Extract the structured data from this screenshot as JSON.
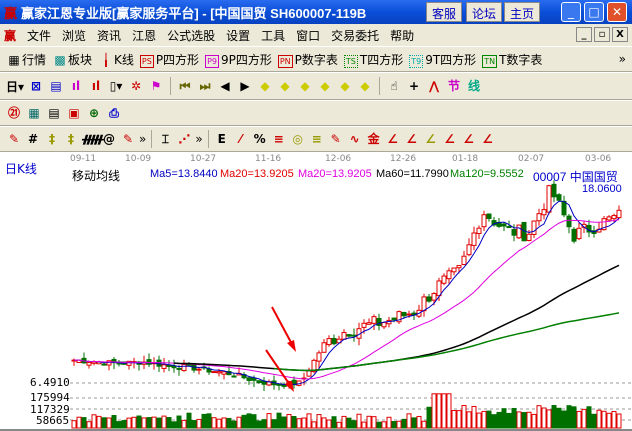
{
  "window": {
    "title": "赢家江恩专业版[赢家服务平台] - [中国国贸    SH600007-119B",
    "buttons": [
      "客服",
      "论坛",
      "主页"
    ]
  },
  "menu": [
    "文件",
    "浏览",
    "资讯",
    "江恩",
    "公式选股",
    "设置",
    "工具",
    "窗口",
    "交易委托",
    "帮助"
  ],
  "toolbar1": [
    {
      "icon": "quote-table-icon",
      "label": "行情"
    },
    {
      "icon": "sector-icon",
      "label": "板块"
    },
    {
      "icon": "kline-icon",
      "label": "K线"
    },
    {
      "icon": "PS",
      "label": "P四方形",
      "color": "#c00000"
    },
    {
      "icon": "P9",
      "label": "9P四方形",
      "color": "#c000c0"
    },
    {
      "icon": "PN",
      "label": "P数字表",
      "color": "#c00000"
    },
    {
      "icon": "TS",
      "label": "T四方形",
      "color": "#008000"
    },
    {
      "icon": "T9",
      "label": "9T四方形",
      "color": "#00a0a0"
    },
    {
      "icon": "TN",
      "label": "T数字表",
      "color": "#008000"
    }
  ],
  "toolbar2": {
    "period": "日"
  },
  "chart": {
    "period_label": "日K线",
    "indicator": "移动均线",
    "ma": [
      {
        "label": "Ma5=13.8440",
        "color": "#0000c0"
      },
      {
        "label": "Ma20=13.9205",
        "color": "#e00000"
      },
      {
        "label": "Ma20=13.9205",
        "color": "#e000e0"
      },
      {
        "label": "Ma60=11.7990",
        "color": "#000000"
      },
      {
        "label": "Ma120=9.5552",
        "color": "#008000"
      }
    ],
    "stock": "00007 中国国贸",
    "high_label": "18.0600",
    "low_label": "6.4910",
    "volume_labels": [
      "175994",
      "117329",
      "58665"
    ],
    "dates": [
      "09-11",
      "10-09",
      "10-27",
      "11-16",
      "12-06",
      "12-26",
      "01-18",
      "02-07",
      "03-06"
    ],
    "price_keypoints": [
      7.8,
      7.7,
      7.6,
      7.7,
      7.5,
      7.4,
      7.2,
      7.0,
      6.6,
      6.4,
      6.5,
      8.7,
      9.5,
      9.8,
      10.1,
      10.6,
      12.0,
      12.9,
      16.3,
      15.2,
      15.0,
      17.5,
      14.9,
      15.5,
      16.0
    ],
    "up_color": "#e00000",
    "down_color": "#007000"
  }
}
